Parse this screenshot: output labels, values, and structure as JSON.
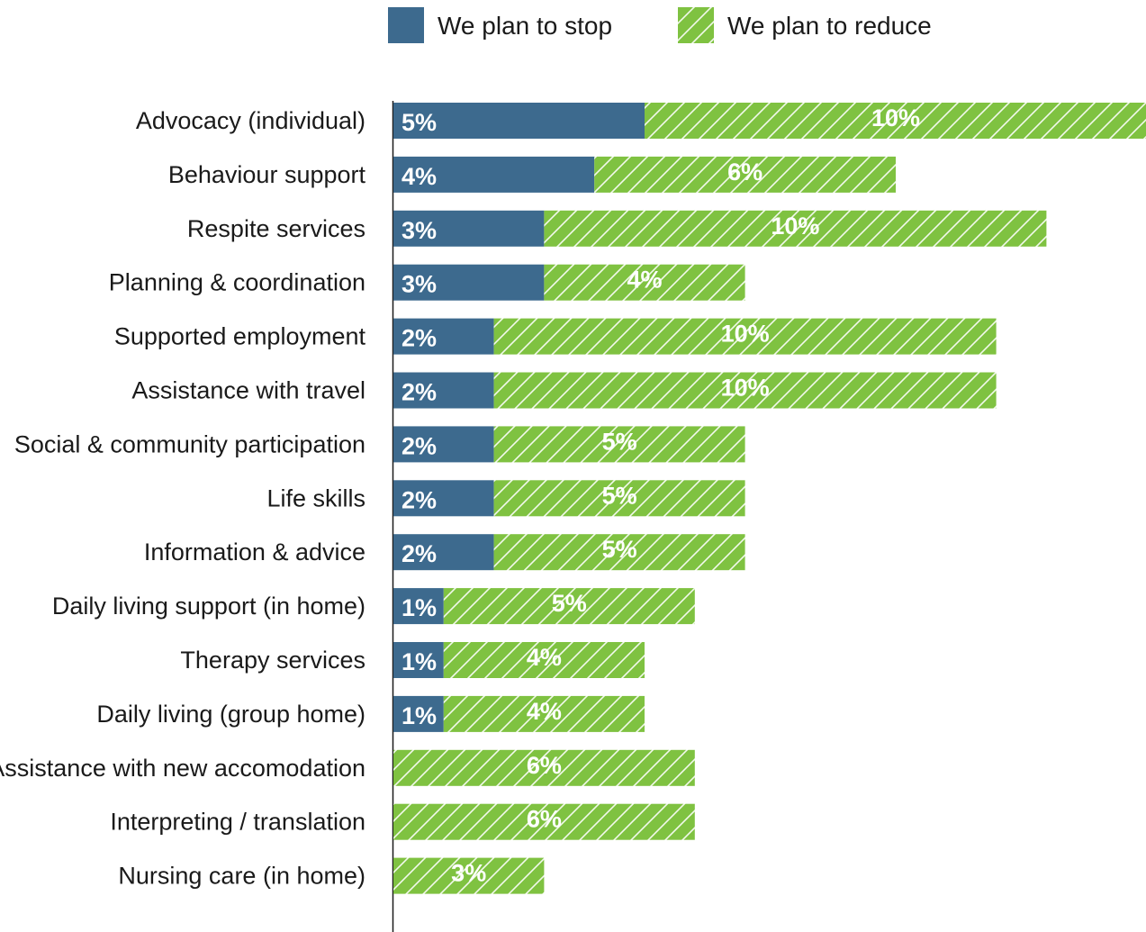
{
  "chart_data": {
    "type": "bar",
    "orientation": "horizontal",
    "stacked": true,
    "unit": "%",
    "categories": [
      "Advocacy (individual)",
      "Behaviour support",
      "Respite services",
      "Planning & coordination",
      "Supported employment",
      "Assistance with travel",
      "Social & community participation",
      "Life skills",
      "Information & advice",
      "Daily living support (in home)",
      "Therapy services",
      "Daily living (group home)",
      "Assistance with new accomodation",
      "Interpreting / translation",
      "Nursing care (in home)"
    ],
    "series": [
      {
        "name": "We plan to stop",
        "color": "#3d6a8e",
        "pattern": "solid",
        "values": [
          5,
          4,
          3,
          3,
          2,
          2,
          2,
          2,
          2,
          1,
          1,
          1,
          0,
          0,
          0
        ]
      },
      {
        "name": "We plan to reduce",
        "color": "#7fc241",
        "pattern": "diagonal-hatch",
        "values": [
          10,
          6,
          10,
          4,
          10,
          10,
          5,
          5,
          5,
          5,
          4,
          4,
          6,
          6,
          3
        ]
      }
    ],
    "legend_position": "top",
    "grid": false,
    "title": "",
    "xlabel": "",
    "ylabel": ""
  }
}
